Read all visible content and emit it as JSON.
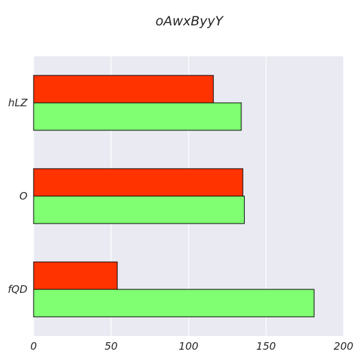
{
  "chart_data": {
    "type": "bar",
    "orientation": "horizontal",
    "title": "oAwxByyY",
    "xlabel": "",
    "ylabel": "",
    "categories": [
      "fQD",
      "O",
      "hLZ"
    ],
    "series": [
      {
        "values": [
          181,
          136,
          134
        ],
        "color": "#80ff73"
      },
      {
        "values": [
          54,
          135,
          116
        ],
        "color": "#ff3300"
      }
    ],
    "xlim": [
      0,
      200
    ],
    "xticks": [
      0,
      50,
      100,
      150,
      200
    ],
    "grid": true,
    "background": "#eaeaf2",
    "bar_edge_color": "#000000"
  }
}
